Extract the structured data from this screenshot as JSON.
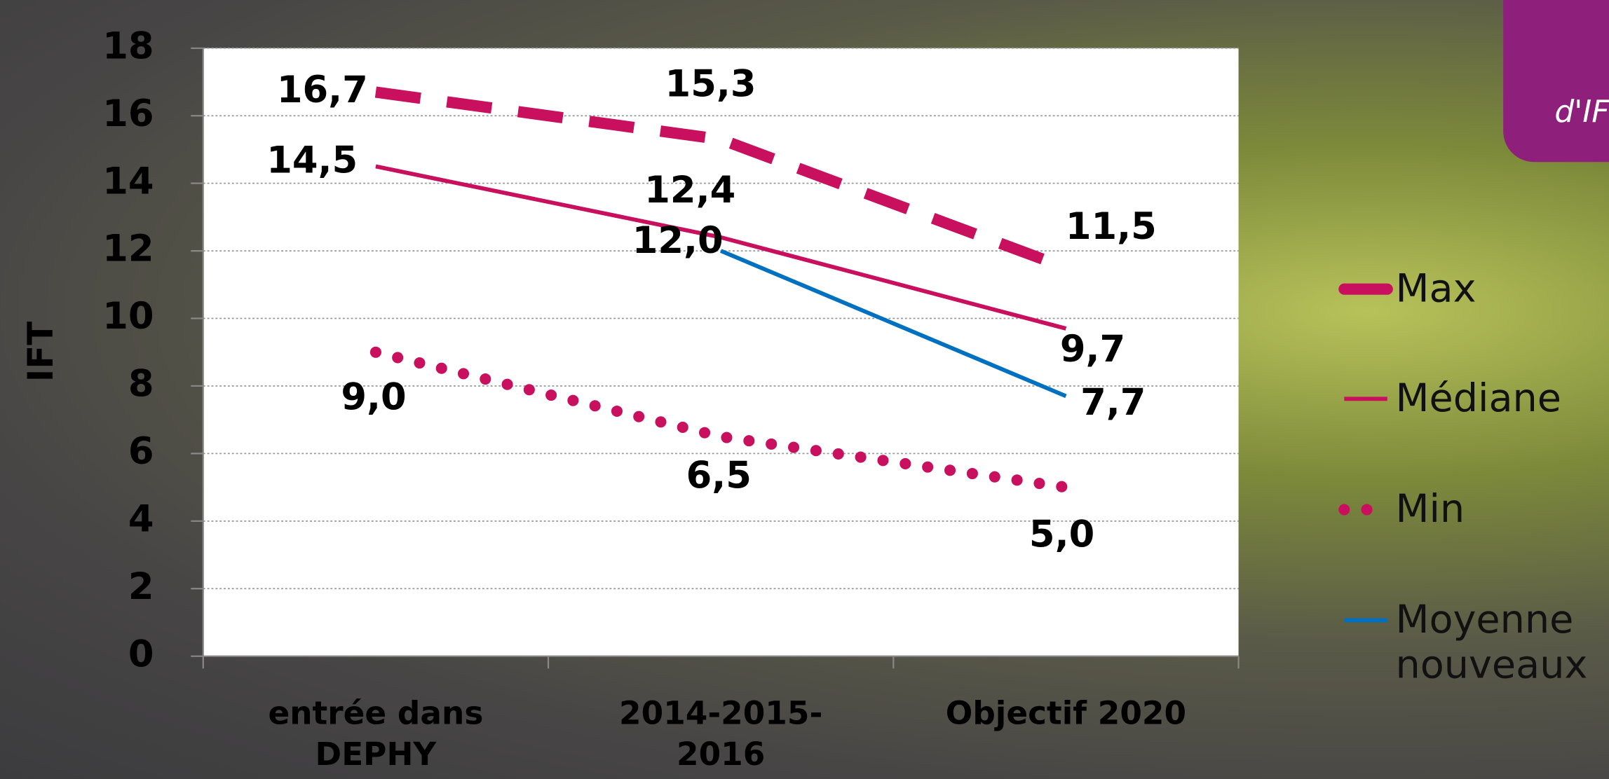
{
  "chart_data": {
    "type": "line",
    "annotation": "d'IF",
    "y_label": "IFT",
    "categories": [
      "entrée dans DEPHY",
      "2014-2015-2016",
      "Objectif 2020"
    ],
    "ylim": [
      0,
      18
    ],
    "yticks": [
      0,
      2,
      4,
      6,
      8,
      10,
      12,
      14,
      16,
      18
    ],
    "grid": true,
    "series": [
      {
        "name": "Max",
        "color": "#c8105e",
        "style": "dashed",
        "values": [
          16.7,
          15.3,
          11.5
        ],
        "value_labels": [
          "16,7",
          "15,3",
          "11,5"
        ]
      },
      {
        "name": "Médiane",
        "color": "#c8105e",
        "style": "solid",
        "values": [
          14.5,
          12.4,
          9.7
        ],
        "value_labels": [
          "14,5",
          "12,4",
          "9,7"
        ]
      },
      {
        "name": "Min",
        "color": "#c8105e",
        "style": "dotted",
        "values": [
          9.0,
          6.5,
          5.0
        ],
        "value_labels": [
          "9,0",
          "6,5",
          "5,0"
        ]
      },
      {
        "name": "Moyenne nouveaux",
        "color": "#0070c0",
        "style": "solid",
        "values": [
          null,
          12.0,
          7.7
        ],
        "value_labels": [
          null,
          "12,0",
          "7,7"
        ]
      }
    ]
  }
}
